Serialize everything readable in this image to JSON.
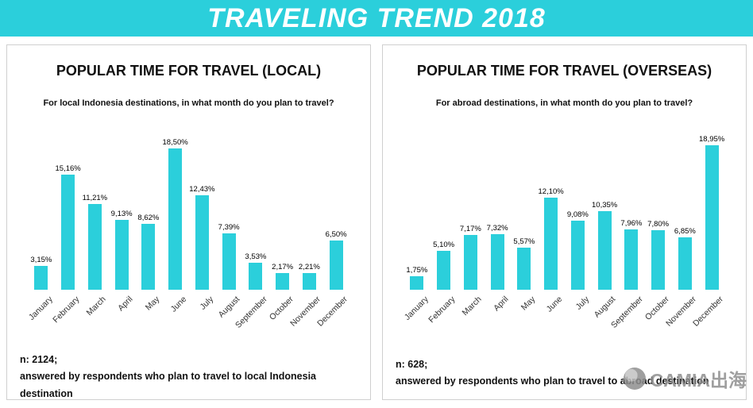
{
  "accent_color": "#2bcfdb",
  "banner": {
    "title": "TRAVELING TREND 2018"
  },
  "watermark": {
    "text": "CAMIA出海"
  },
  "chart_data": [
    {
      "type": "bar",
      "title": "POPULAR TIME FOR TRAVEL (LOCAL)",
      "subtitle": "For local Indonesia destinations, in what month do you plan to travel?",
      "categories": [
        "January",
        "February",
        "March",
        "April",
        "May",
        "June",
        "July",
        "August",
        "September",
        "October",
        "November",
        "December"
      ],
      "values": [
        3.15,
        15.16,
        11.21,
        9.13,
        8.62,
        18.5,
        12.43,
        7.39,
        3.53,
        2.17,
        2.21,
        6.5
      ],
      "value_labels": [
        "3,15%",
        "15,16%",
        "11,21%",
        "9,13%",
        "8,62%",
        "18,50%",
        "12,43%",
        "7,39%",
        "3,53%",
        "2,17%",
        "2,21%",
        "6,50%"
      ],
      "xlabel": "",
      "ylabel": "",
      "ylim": [
        0,
        20
      ],
      "grid": false,
      "legend": false,
      "bar_color": "#2bcfdb",
      "footer_n": "n: 2124;",
      "footer_note": "answered by respondents who plan to travel to local Indonesia destination"
    },
    {
      "type": "bar",
      "title": "POPULAR TIME FOR TRAVEL (OVERSEAS)",
      "subtitle": "For abroad destinations, in what month do you plan to travel?",
      "categories": [
        "January",
        "February",
        "March",
        "April",
        "May",
        "June",
        "July",
        "August",
        "September",
        "October",
        "November",
        "December"
      ],
      "values": [
        1.75,
        5.1,
        7.17,
        7.32,
        5.57,
        12.1,
        9.08,
        10.35,
        7.96,
        7.8,
        6.85,
        18.95
      ],
      "value_labels": [
        "1,75%",
        "5,10%",
        "7,17%",
        "7,32%",
        "5,57%",
        "12,10%",
        "9,08%",
        "10,35%",
        "7,96%",
        "7,80%",
        "6,85%",
        "18,95%"
      ],
      "xlabel": "",
      "ylabel": "",
      "ylim": [
        0,
        20
      ],
      "grid": false,
      "legend": false,
      "bar_color": "#2bcfdb",
      "footer_n": "n: 628;",
      "footer_note": "answered by respondents who plan to travel to abroad destination"
    }
  ]
}
